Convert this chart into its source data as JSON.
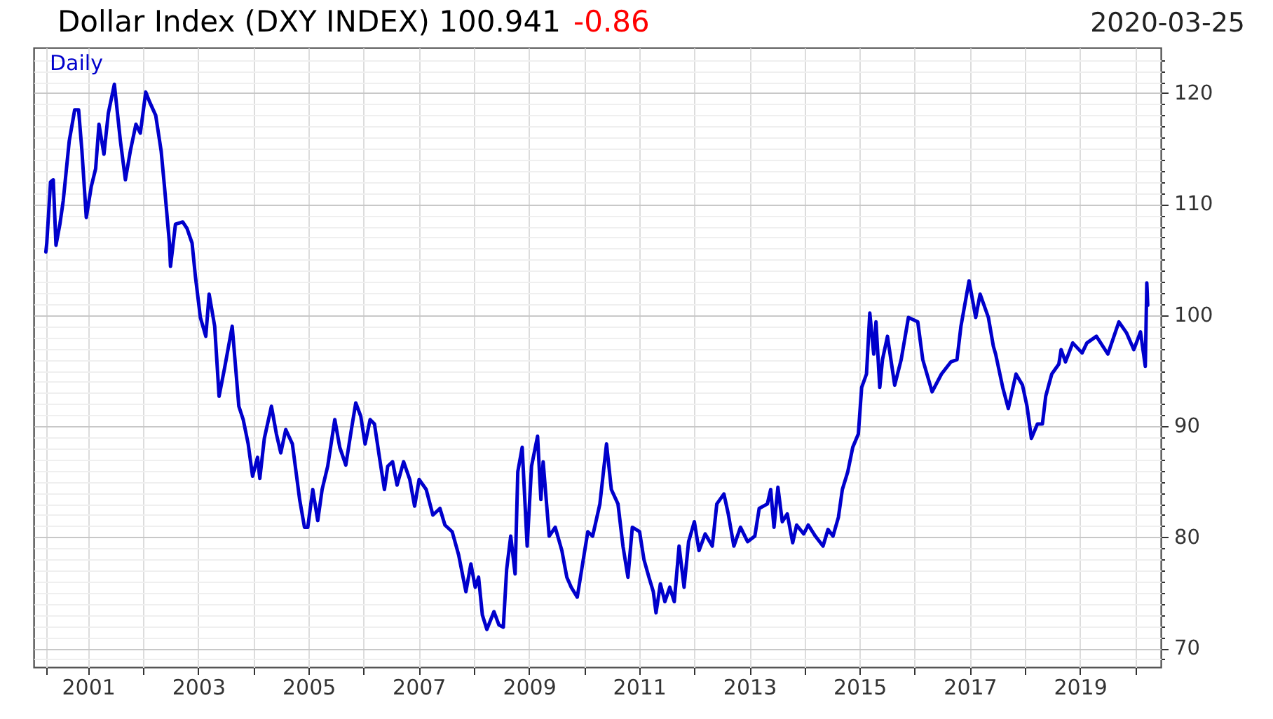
{
  "chart_data": {
    "type": "line",
    "title": "Dollar Index (DXY INDEX) 100.941",
    "annotations": [
      "-0.86",
      "2020-03-25"
    ],
    "x": [
      "2000-03-27",
      "2000-04-02",
      "2000-04-27",
      "2000-05-15",
      "2000-06-02",
      "2000-06-28",
      "2000-07-20",
      "2000-08-29",
      "2000-10-04",
      "2000-10-30",
      "2000-11-21",
      "2000-12-20",
      "2001-01-22",
      "2001-02-20",
      "2001-03-14",
      "2001-04-16",
      "2001-05-15",
      "2001-06-24",
      "2001-08-03",
      "2001-09-05",
      "2001-10-08",
      "2001-11-14",
      "2001-12-13",
      "2002-01-18",
      "2002-02-13",
      "2002-03-25",
      "2002-04-30",
      "2002-05-22",
      "2002-06-24",
      "2002-07-01",
      "2002-08-03",
      "2002-09-20",
      "2002-10-19",
      "2002-11-21",
      "2002-12-13",
      "2003-01-15",
      "2003-02-20",
      "2003-03-14",
      "2003-04-20",
      "2003-05-19",
      "2003-06-24",
      "2003-08-14",
      "2003-09-27",
      "2003-10-26",
      "2003-11-28",
      "2003-12-27",
      "2004-01-29",
      "2004-02-13",
      "2004-03-14",
      "2004-04-30",
      "2004-06-02",
      "2004-07-01",
      "2004-08-03",
      "2004-09-16",
      "2004-11-03",
      "2004-12-05",
      "2004-12-27",
      "2005-01-29",
      "2005-03-03",
      "2005-04-01",
      "2005-05-08",
      "2005-06-24",
      "2005-07-27",
      "2005-09-05",
      "2005-10-12",
      "2005-11-10",
      "2005-12-13",
      "2006-01-11",
      "2006-02-13",
      "2006-03-14",
      "2006-04-16",
      "2006-05-19",
      "2006-06-10",
      "2006-07-12",
      "2006-08-11",
      "2006-09-23",
      "2006-11-03",
      "2006-12-05",
      "2007-01-04",
      "2007-02-20",
      "2007-04-05",
      "2007-05-22",
      "2007-06-24",
      "2007-08-11",
      "2007-09-23",
      "2007-11-10",
      "2007-12-13",
      "2008-01-11",
      "2008-02-02",
      "2008-02-27",
      "2008-03-28",
      "2008-05-14",
      "2008-06-16",
      "2008-07-15",
      "2008-08-06",
      "2008-09-02",
      "2008-10-01",
      "2008-10-19",
      "2008-11-17",
      "2008-12-20",
      "2009-01-18",
      "2009-02-27",
      "2009-03-21",
      "2009-04-05",
      "2009-05-15",
      "2009-06-24",
      "2009-08-07",
      "2009-09-09",
      "2009-10-08",
      "2009-11-17",
      "2009-12-27",
      "2010-01-26",
      "2010-02-27",
      "2010-04-16",
      "2010-05-30",
      "2010-07-01",
      "2010-08-14",
      "2010-09-16",
      "2010-10-19",
      "2010-11-17",
      "2011-01-04",
      "2011-02-02",
      "2011-03-07",
      "2011-04-05",
      "2011-04-23",
      "2011-05-22",
      "2011-06-21",
      "2011-07-23",
      "2011-08-22",
      "2011-09-23",
      "2011-10-26",
      "2011-11-25",
      "2012-01-02",
      "2012-02-02",
      "2012-03-14",
      "2012-04-30",
      "2012-05-30",
      "2012-07-16",
      "2012-08-14",
      "2012-09-20",
      "2012-11-03",
      "2012-12-20",
      "2013-02-06",
      "2013-03-07",
      "2013-04-30",
      "2013-05-22",
      "2013-06-13",
      "2013-07-09",
      "2013-08-07",
      "2013-09-09",
      "2013-10-15",
      "2013-11-10",
      "2013-12-27",
      "2014-01-26",
      "2014-03-14",
      "2014-05-04",
      "2014-06-06",
      "2014-07-09",
      "2014-08-14",
      "2014-09-09",
      "2014-10-15",
      "2014-11-17",
      "2014-12-24",
      "2015-01-15",
      "2015-02-16",
      "2015-03-10",
      "2015-04-05",
      "2015-04-20",
      "2015-05-15",
      "2015-06-02",
      "2015-07-05",
      "2015-08-22",
      "2015-10-04",
      "2015-11-21",
      "2016-01-22",
      "2016-02-24",
      "2016-04-26",
      "2016-06-27",
      "2016-08-29",
      "2016-10-08",
      "2016-11-03",
      "2016-12-27",
      "2017-02-09",
      "2017-03-10",
      "2017-05-04",
      "2017-06-06",
      "2017-06-21",
      "2017-08-07",
      "2017-09-13",
      "2017-11-03",
      "2017-12-16",
      "2018-01-15",
      "2018-02-13",
      "2018-03-25",
      "2018-04-27",
      "2018-05-19",
      "2018-06-28",
      "2018-08-14",
      "2018-08-29",
      "2018-09-27",
      "2018-11-14",
      "2019-01-15",
      "2019-02-16",
      "2019-04-20",
      "2019-07-05",
      "2019-09-16",
      "2019-11-06",
      "2019-12-24",
      "2020-02-06",
      "2020-03-09",
      "2020-03-19",
      "2020-03-25"
    ],
    "series": [
      {
        "name": "Daily",
        "color": "#0000cc",
        "values": [
          105.7,
          106.5,
          112.0,
          112.2,
          106.3,
          108.2,
          110.3,
          115.7,
          118.5,
          118.5,
          114.8,
          108.8,
          111.6,
          113.2,
          117.2,
          114.5,
          118.2,
          120.8,
          115.7,
          112.2,
          114.8,
          117.2,
          116.4,
          120.1,
          119.2,
          118.0,
          114.8,
          111.6,
          106.5,
          104.4,
          108.2,
          108.4,
          107.8,
          106.5,
          103.5,
          99.8,
          98.1,
          101.9,
          99.0,
          92.7,
          95.2,
          99.0,
          91.8,
          90.6,
          88.4,
          85.5,
          87.2,
          85.3,
          88.9,
          91.8,
          89.3,
          87.6,
          89.7,
          88.4,
          83.4,
          80.9,
          80.9,
          84.3,
          81.5,
          84.3,
          86.4,
          90.6,
          88.1,
          86.5,
          89.7,
          92.1,
          90.9,
          88.4,
          90.6,
          90.2,
          87.2,
          84.3,
          86.4,
          86.8,
          84.7,
          86.8,
          85.2,
          82.8,
          85.2,
          84.3,
          82.0,
          82.6,
          81.1,
          80.5,
          78.4,
          75.1,
          77.6,
          75.5,
          76.4,
          73.0,
          71.7,
          73.3,
          72.1,
          71.9,
          77.1,
          80.1,
          76.7,
          85.9,
          88.1,
          79.2,
          86.4,
          89.1,
          83.4,
          86.8,
          80.1,
          80.9,
          78.8,
          76.4,
          75.5,
          74.6,
          78.0,
          80.5,
          80.1,
          83.0,
          88.4,
          84.3,
          83.0,
          79.2,
          76.4,
          80.9,
          80.5,
          78.0,
          76.4,
          75.1,
          73.2,
          75.8,
          74.2,
          75.5,
          74.2,
          79.2,
          75.5,
          79.6,
          81.4,
          78.8,
          80.3,
          79.2,
          83.0,
          83.9,
          82.1,
          79.2,
          80.9,
          79.6,
          80.1,
          82.6,
          83.0,
          84.3,
          80.9,
          84.5,
          81.4,
          82.1,
          79.5,
          81.1,
          80.3,
          81.1,
          80.1,
          79.2,
          80.7,
          80.1,
          81.8,
          84.3,
          85.9,
          88.1,
          89.3,
          93.5,
          94.7,
          100.2,
          96.5,
          99.4,
          93.5,
          96.0,
          98.1,
          93.7,
          96.0,
          99.8,
          99.4,
          96.0,
          93.1,
          94.7,
          95.8,
          96.0,
          99.0,
          103.1,
          99.8,
          101.9,
          99.8,
          97.2,
          96.5,
          93.5,
          91.6,
          94.7,
          93.7,
          91.8,
          88.9,
          90.2,
          90.2,
          92.7,
          94.7,
          95.6,
          96.9,
          95.8,
          97.5,
          96.6,
          97.5,
          98.1,
          96.5,
          99.4,
          98.4,
          96.9,
          98.5,
          95.4,
          102.9,
          100.9
        ]
      }
    ],
    "xlim": [
      "2000-01-06",
      "2020-06-20"
    ],
    "xticks": [
      {
        "value": "2000-03-27",
        "label": null
      },
      {
        "value": "2001-01-01",
        "label": "2001"
      },
      {
        "value": "2002-01-01",
        "label": null
      },
      {
        "value": "2003-01-01",
        "label": "2003"
      },
      {
        "value": "2004-01-01",
        "label": null
      },
      {
        "value": "2005-01-01",
        "label": "2005"
      },
      {
        "value": "2006-01-01",
        "label": null
      },
      {
        "value": "2007-01-01",
        "label": "2007"
      },
      {
        "value": "2008-01-01",
        "label": null
      },
      {
        "value": "2009-01-01",
        "label": "2009"
      },
      {
        "value": "2010-01-01",
        "label": null
      },
      {
        "value": "2011-01-01",
        "label": "2011"
      },
      {
        "value": "2012-01-01",
        "label": null
      },
      {
        "value": "2013-01-01",
        "label": "2013"
      },
      {
        "value": "2014-01-01",
        "label": null
      },
      {
        "value": "2015-01-01",
        "label": "2015"
      },
      {
        "value": "2016-01-01",
        "label": null
      },
      {
        "value": "2017-01-01",
        "label": "2017"
      },
      {
        "value": "2018-01-01",
        "label": null
      },
      {
        "value": "2019-01-01",
        "label": "2019"
      },
      {
        "value": "2020-01-01",
        "label": null
      }
    ],
    "ylim": [
      68.3,
      124.1
    ],
    "yticks": [
      {
        "value": 69,
        "label": null
      },
      {
        "value": 70,
        "label": "70"
      },
      {
        "value": 71,
        "label": null
      },
      {
        "value": 72,
        "label": null
      },
      {
        "value": 73,
        "label": null
      },
      {
        "value": 74,
        "label": null
      },
      {
        "value": 75,
        "label": null
      },
      {
        "value": 76,
        "label": null
      },
      {
        "value": 77,
        "label": null
      },
      {
        "value": 78,
        "label": null
      },
      {
        "value": 79,
        "label": null
      },
      {
        "value": 80,
        "label": "80"
      },
      {
        "value": 81,
        "label": null
      },
      {
        "value": 82,
        "label": null
      },
      {
        "value": 83,
        "label": null
      },
      {
        "value": 84,
        "label": null
      },
      {
        "value": 85,
        "label": null
      },
      {
        "value": 86,
        "label": null
      },
      {
        "value": 87,
        "label": null
      },
      {
        "value": 88,
        "label": null
      },
      {
        "value": 89,
        "label": null
      },
      {
        "value": 90,
        "label": "90"
      },
      {
        "value": 91,
        "label": null
      },
      {
        "value": 92,
        "label": null
      },
      {
        "value": 93,
        "label": null
      },
      {
        "value": 94,
        "label": null
      },
      {
        "value": 95,
        "label": null
      },
      {
        "value": 96,
        "label": null
      },
      {
        "value": 97,
        "label": null
      },
      {
        "value": 98,
        "label": null
      },
      {
        "value": 99,
        "label": null
      },
      {
        "value": 100,
        "label": "100"
      },
      {
        "value": 101,
        "label": null
      },
      {
        "value": 102,
        "label": null
      },
      {
        "value": 103,
        "label": null
      },
      {
        "value": 104,
        "label": null
      },
      {
        "value": 105,
        "label": null
      },
      {
        "value": 106,
        "label": null
      },
      {
        "value": 107,
        "label": null
      },
      {
        "value": 108,
        "label": null
      },
      {
        "value": 109,
        "label": null
      },
      {
        "value": 110,
        "label": "110"
      },
      {
        "value": 111,
        "label": null
      },
      {
        "value": 112,
        "label": null
      },
      {
        "value": 113,
        "label": null
      },
      {
        "value": 114,
        "label": null
      },
      {
        "value": 115,
        "label": null
      },
      {
        "value": 116,
        "label": null
      },
      {
        "value": 117,
        "label": null
      },
      {
        "value": 118,
        "label": null
      },
      {
        "value": 119,
        "label": null
      },
      {
        "value": 120,
        "label": "120"
      },
      {
        "value": 121,
        "label": null
      },
      {
        "value": 122,
        "label": null
      },
      {
        "value": 123,
        "label": null
      }
    ],
    "grid": true,
    "legend": "top left",
    "marker": "none",
    "line_style": "solid"
  }
}
